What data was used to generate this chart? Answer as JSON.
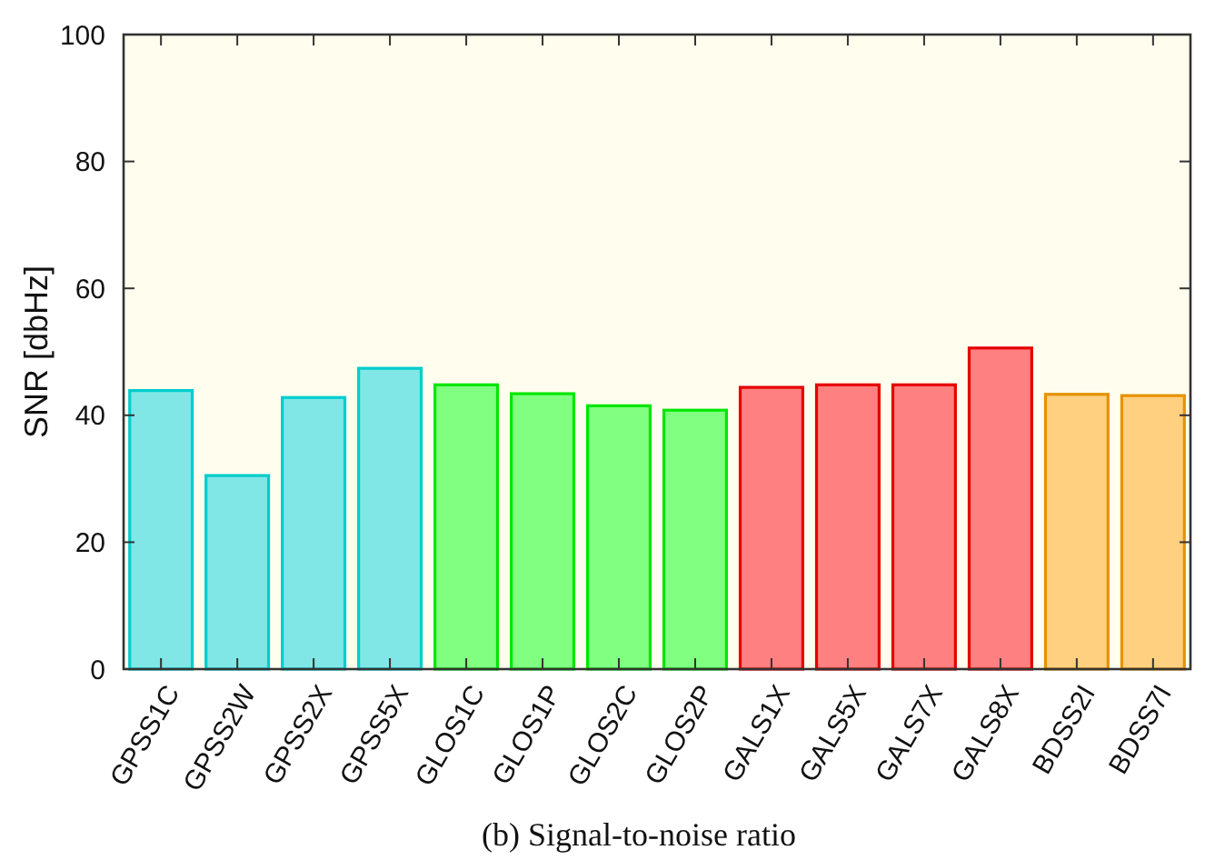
{
  "chart_data": {
    "type": "bar",
    "title": "(b) Signal-to-noise ratio",
    "ylabel": "SNR [dbHz]",
    "categories": [
      "GPSS1C",
      "GPSS2W",
      "GPSS2X",
      "GPSS5X",
      "GLOS1C",
      "GLOS1P",
      "GLOS2C",
      "GLOS2P",
      "GALS1X",
      "GALS5X",
      "GALS7X",
      "GALS8X",
      "BDSS2I",
      "BDSS7I"
    ],
    "values": [
      43.9,
      30.5,
      42.8,
      47.4,
      44.8,
      43.4,
      41.5,
      40.8,
      44.4,
      44.8,
      44.8,
      50.6,
      43.3,
      43.1
    ],
    "colors": [
      "#80e6e6",
      "#80e6e6",
      "#80e6e6",
      "#80e6e6",
      "#80ff80",
      "#80ff80",
      "#80ff80",
      "#80ff80",
      "#ff8080",
      "#ff8080",
      "#ff8080",
      "#ff8080",
      "#ffd080",
      "#ffd080"
    ],
    "ylim": [
      0,
      100
    ],
    "yticks": [
      0,
      20,
      40,
      60,
      80,
      100
    ],
    "grid": false
  }
}
